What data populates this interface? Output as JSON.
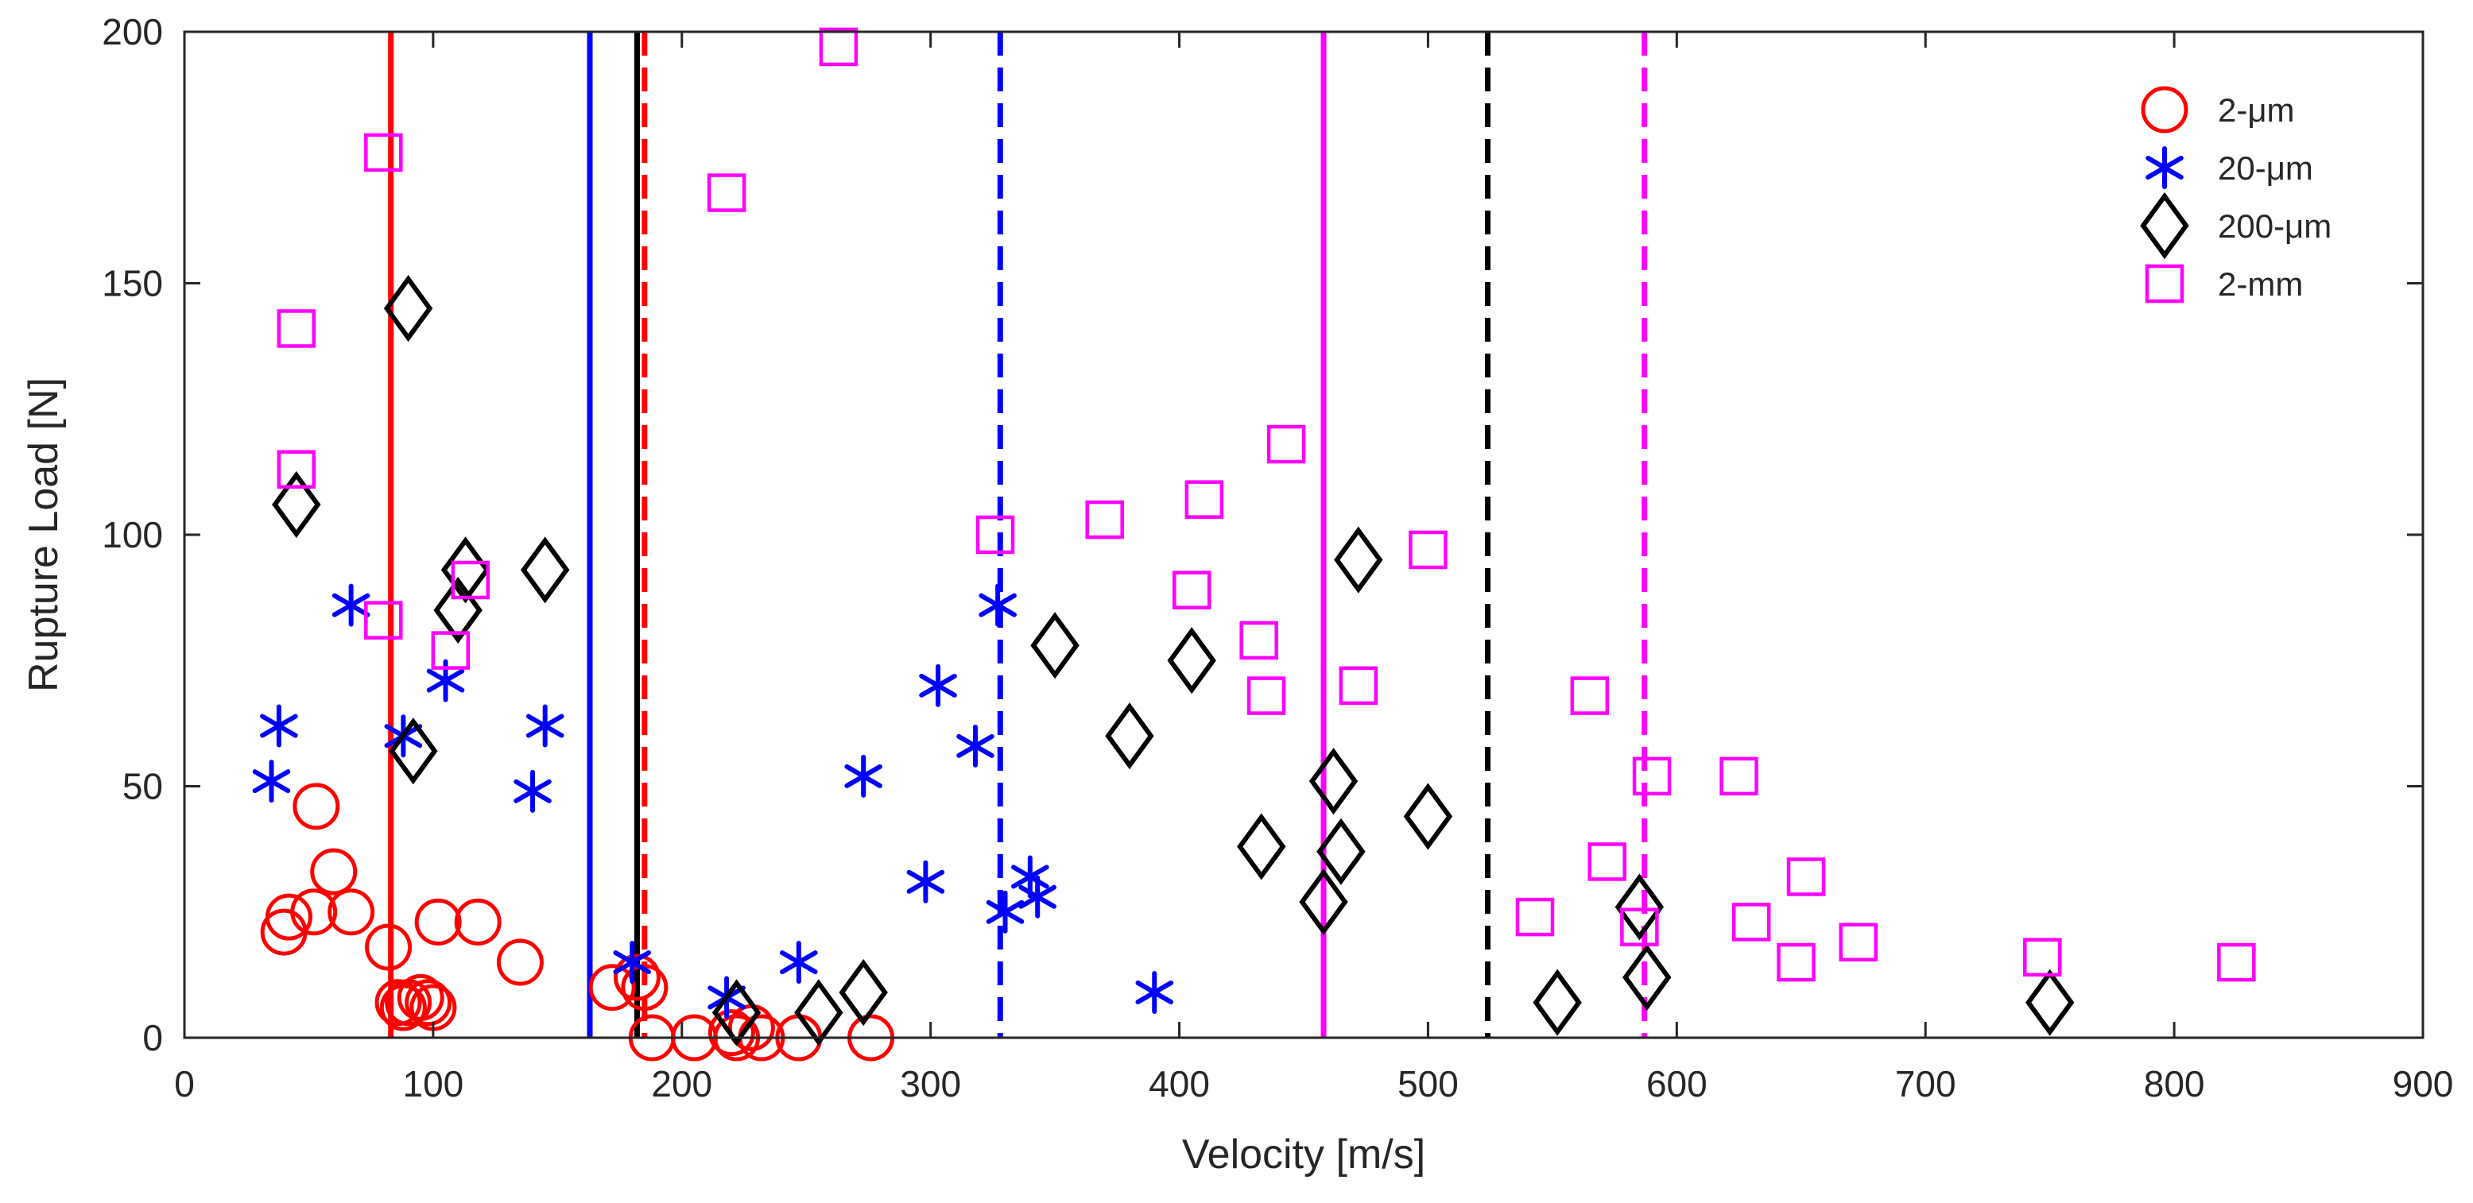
{
  "chart_data": {
    "type": "scatter",
    "title": "",
    "xlabel": "Velocity [m/s]",
    "ylabel": "Rupture Load [N]",
    "xlim": [
      0,
      900
    ],
    "ylim": [
      0,
      200
    ],
    "xticks": [
      0,
      100,
      200,
      300,
      400,
      500,
      600,
      700,
      800,
      900
    ],
    "yticks": [
      0,
      50,
      100,
      150,
      200
    ],
    "xtick_labels": [
      "0",
      "100",
      "200",
      "300",
      "400",
      "500",
      "600",
      "700",
      "800",
      "900"
    ],
    "ytick_labels": [
      "0",
      "50",
      "100",
      "150",
      "200"
    ],
    "grid": false,
    "legend_position": "top-right",
    "series": [
      {
        "name": "2-μm",
        "marker": "circle",
        "color": "#ff0000",
        "points": [
          [
            40,
            21
          ],
          [
            42,
            24
          ],
          [
            53,
            46
          ],
          [
            52,
            25
          ],
          [
            60,
            33
          ],
          [
            67,
            25
          ],
          [
            82,
            18
          ],
          [
            86,
            7
          ],
          [
            88,
            6
          ],
          [
            90,
            7
          ],
          [
            95,
            8
          ],
          [
            98,
            7
          ],
          [
            100,
            6
          ],
          [
            102,
            23
          ],
          [
            118,
            23
          ],
          [
            135,
            15
          ],
          [
            172,
            10
          ],
          [
            182,
            12
          ],
          [
            185,
            10
          ],
          [
            188,
            0
          ],
          [
            205,
            0
          ],
          [
            220,
            1
          ],
          [
            222,
            0
          ],
          [
            228,
            2
          ],
          [
            232,
            0
          ],
          [
            247,
            0
          ],
          [
            276,
            0
          ]
        ]
      },
      {
        "name": "20-μm",
        "marker": "asterisk",
        "color": "#0000ff",
        "points": [
          [
            35,
            51
          ],
          [
            38,
            62
          ],
          [
            67,
            86
          ],
          [
            88,
            60
          ],
          [
            105,
            71
          ],
          [
            140,
            49
          ],
          [
            145,
            62
          ],
          [
            180,
            15
          ],
          [
            218,
            8
          ],
          [
            247,
            15
          ],
          [
            273,
            52
          ],
          [
            298,
            31
          ],
          [
            303,
            70
          ],
          [
            318,
            58
          ],
          [
            327,
            86
          ],
          [
            330,
            25
          ],
          [
            340,
            32
          ],
          [
            343,
            28
          ],
          [
            390,
            9
          ]
        ]
      },
      {
        "name": "200-μm",
        "marker": "diamond",
        "color": "#000000",
        "points": [
          [
            45,
            106
          ],
          [
            90,
            145
          ],
          [
            92,
            57
          ],
          [
            110,
            85
          ],
          [
            113,
            93
          ],
          [
            145,
            93
          ],
          [
            222,
            5
          ],
          [
            255,
            5
          ],
          [
            273,
            9
          ],
          [
            350,
            78
          ],
          [
            380,
            60
          ],
          [
            405,
            75
          ],
          [
            433,
            38
          ],
          [
            458,
            27
          ],
          [
            462,
            51
          ],
          [
            465,
            37
          ],
          [
            472,
            95
          ],
          [
            500,
            44
          ],
          [
            552,
            7
          ],
          [
            585,
            26
          ],
          [
            588,
            12
          ],
          [
            750,
            7
          ]
        ]
      },
      {
        "name": "2-mm",
        "marker": "square",
        "color": "#ff00ff",
        "points": [
          [
            45,
            141
          ],
          [
            45,
            113
          ],
          [
            80,
            83
          ],
          [
            80,
            176
          ],
          [
            107,
            77
          ],
          [
            115,
            91
          ],
          [
            218,
            168
          ],
          [
            263,
            197
          ],
          [
            326,
            100
          ],
          [
            370,
            103
          ],
          [
            405,
            89
          ],
          [
            410,
            107
          ],
          [
            432,
            79
          ],
          [
            435,
            68
          ],
          [
            443,
            118
          ],
          [
            472,
            70
          ],
          [
            500,
            97
          ],
          [
            543,
            24
          ],
          [
            565,
            68
          ],
          [
            572,
            35
          ],
          [
            585,
            22
          ],
          [
            590,
            52
          ],
          [
            625,
            52
          ],
          [
            630,
            23
          ],
          [
            648,
            15
          ],
          [
            652,
            32
          ],
          [
            673,
            19
          ],
          [
            747,
            16
          ],
          [
            825,
            15
          ]
        ]
      }
    ],
    "vertical_lines": [
      {
        "x": 83,
        "color": "#ff0000",
        "style": "solid"
      },
      {
        "x": 163,
        "color": "#0000ff",
        "style": "solid"
      },
      {
        "x": 185,
        "color": "#ff0000",
        "style": "dashed"
      },
      {
        "x": 182,
        "color": "#000000",
        "style": "solid"
      },
      {
        "x": 328,
        "color": "#0000ff",
        "style": "dashed"
      },
      {
        "x": 458,
        "color": "#ff00ff",
        "style": "solid"
      },
      {
        "x": 524,
        "color": "#000000",
        "style": "dashed"
      },
      {
        "x": 587,
        "color": "#ff00ff",
        "style": "dashed"
      }
    ]
  }
}
